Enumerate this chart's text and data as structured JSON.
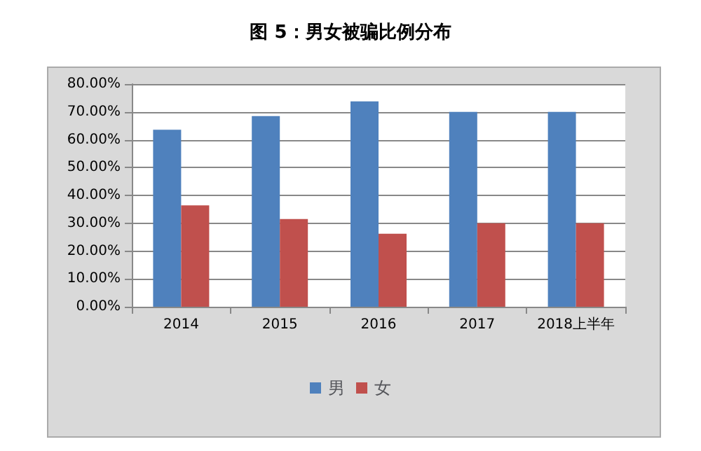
{
  "chart_data": {
    "type": "bar",
    "title": "图 5：男女被骗比例分布",
    "categories": [
      "2014",
      "2015",
      "2016",
      "2017",
      "2018上半年"
    ],
    "series": [
      {
        "name": "男",
        "color": "#4f81bd",
        "values": [
          63.6,
          68.5,
          73.8,
          70,
          70
        ]
      },
      {
        "name": "女",
        "color": "#c0504d",
        "values": [
          36.4,
          31.5,
          26.2,
          30,
          30
        ]
      }
    ],
    "ylim": [
      0,
      80
    ],
    "yticks": [
      {
        "value": 0,
        "label": "0.00%"
      },
      {
        "value": 10,
        "label": "10.00%"
      },
      {
        "value": 20,
        "label": "20.00%"
      },
      {
        "value": 30,
        "label": "30.00%"
      },
      {
        "value": 40,
        "label": "40.00%"
      },
      {
        "value": 50,
        "label": "50.00%"
      },
      {
        "value": 60,
        "label": "60.00%"
      },
      {
        "value": 70,
        "label": "70.00%"
      },
      {
        "value": 80,
        "label": "80.00%"
      }
    ],
    "grid": "y",
    "legend": "bottom"
  }
}
